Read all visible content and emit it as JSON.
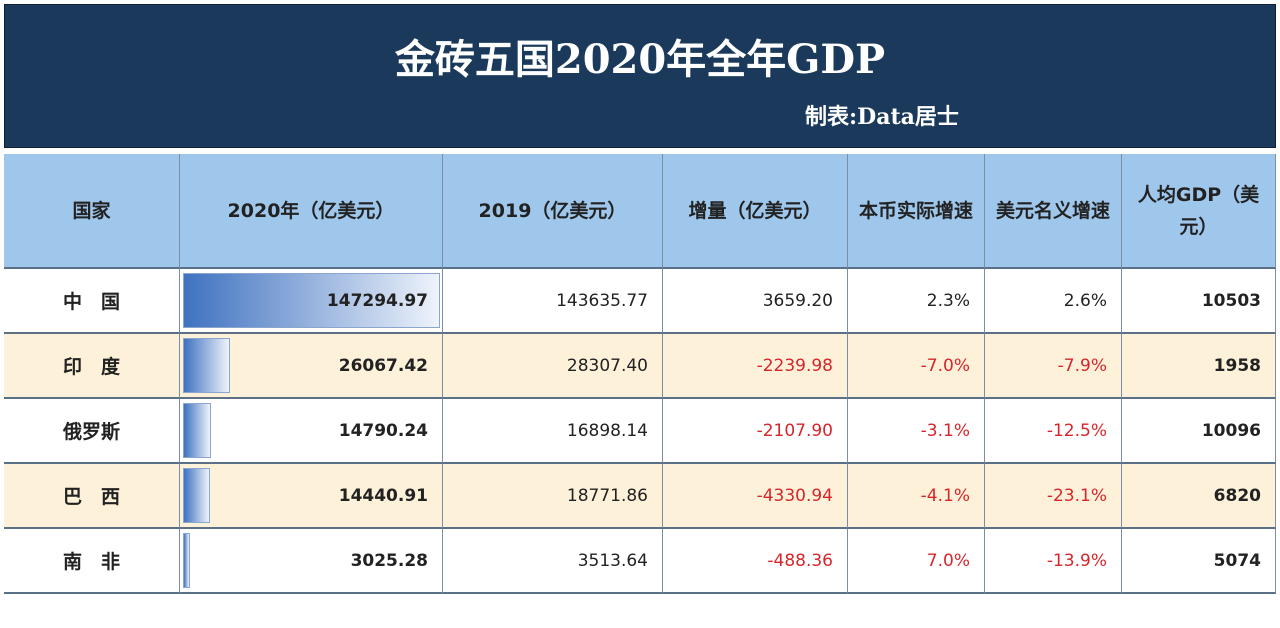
{
  "header": {
    "title": "金砖五国2020年全年GDP",
    "subtitle": "制表:Data居士"
  },
  "table": {
    "columns": [
      "国家",
      "2020年（亿美元）",
      "2019（亿美元）",
      "增量（亿美元）",
      "本币实际增速",
      "美元名义增速",
      "人均GDP（美元）"
    ],
    "rows": [
      [
        "中　国",
        147294.97,
        "143635.77",
        "3659.20",
        "2.3%",
        "2.6%",
        "10503"
      ],
      [
        "印　度",
        26067.42,
        "28307.40",
        "-2239.98",
        "-7.0%",
        "-7.9%",
        "1958"
      ],
      [
        "俄罗斯",
        14790.24,
        "16898.14",
        "-2107.90",
        "-3.1%",
        "-12.5%",
        "10096"
      ],
      [
        "巴　西",
        14440.91,
        "18771.86",
        "-4330.94",
        "-4.1%",
        "-23.1%",
        "6820"
      ],
      [
        "南　非",
        3025.28,
        "3513.64",
        "-488.36",
        "7.0%",
        "-13.9%",
        "5074"
      ]
    ],
    "row_text_colors": [
      "#222222",
      "#d7262b",
      "#d7262b",
      "#d7262b",
      "#d7262b"
    ],
    "row_backgrounds": [
      "#ffffff",
      "#fdf1d9",
      "#ffffff",
      "#fdf1d9",
      "#ffffff"
    ],
    "header_background": "#9fc7eb",
    "bar_color": "#3f72c0"
  }
}
